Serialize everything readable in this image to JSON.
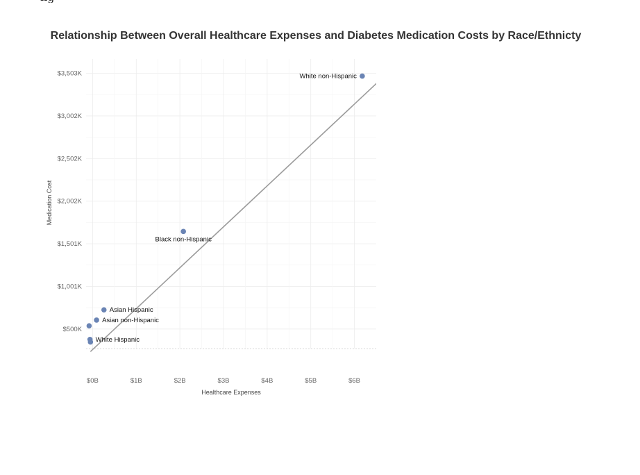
{
  "page": {
    "top_fragment": "ng"
  },
  "chart_data": {
    "type": "scatter",
    "title": "Relationship Between Overall Healthcare Expenses and Diabetes Medication Costs by Race/Ethnicty",
    "xlabel": "Healthcare Expenses",
    "ylabel": "Medication Cost",
    "xlim": [
      -0.15,
      6.5
    ],
    "ylim": [
      270,
      3670
    ],
    "x_ticks": [
      {
        "value": 0,
        "label": "$0B"
      },
      {
        "value": 1,
        "label": "$1B"
      },
      {
        "value": 2,
        "label": "$2B"
      },
      {
        "value": 3,
        "label": "$3B"
      },
      {
        "value": 4,
        "label": "$4B"
      },
      {
        "value": 5,
        "label": "$5B"
      },
      {
        "value": 6,
        "label": "$6B"
      }
    ],
    "y_ticks": [
      {
        "value": 500,
        "label": "$500K"
      },
      {
        "value": 1001,
        "label": "$1,001K"
      },
      {
        "value": 1501,
        "label": "$1,501K"
      },
      {
        "value": 2002,
        "label": "$2,002K"
      },
      {
        "value": 2502,
        "label": "$2,502K"
      },
      {
        "value": 3002,
        "label": "$3,002K"
      },
      {
        "value": 3503,
        "label": "$3,503K"
      }
    ],
    "points": [
      {
        "x": 6.18,
        "y": 3470,
        "label": "White non-Hispanic",
        "label_pos": "left"
      },
      {
        "x": 2.08,
        "y": 1645,
        "label": "Black non-Hispanic",
        "label_pos": "below"
      },
      {
        "x": 0.26,
        "y": 725,
        "label": "Asian Hispanic",
        "label_pos": "right"
      },
      {
        "x": 0.09,
        "y": 605,
        "label": "Asian non-Hispanic",
        "label_pos": "right"
      },
      {
        "x": -0.08,
        "y": 538,
        "label": "",
        "label_pos": "none"
      },
      {
        "x": -0.06,
        "y": 378,
        "label": "White Hispanic",
        "label_pos": "right"
      },
      {
        "x": -0.05,
        "y": 348,
        "label": "",
        "label_pos": "none"
      }
    ],
    "trendline": {
      "x": [
        -0.05,
        6.55
      ],
      "y": [
        235,
        3405
      ]
    },
    "point_color": "#6a84b4",
    "trend_color": "#9b9b9b",
    "grid": true,
    "legend": "none"
  }
}
